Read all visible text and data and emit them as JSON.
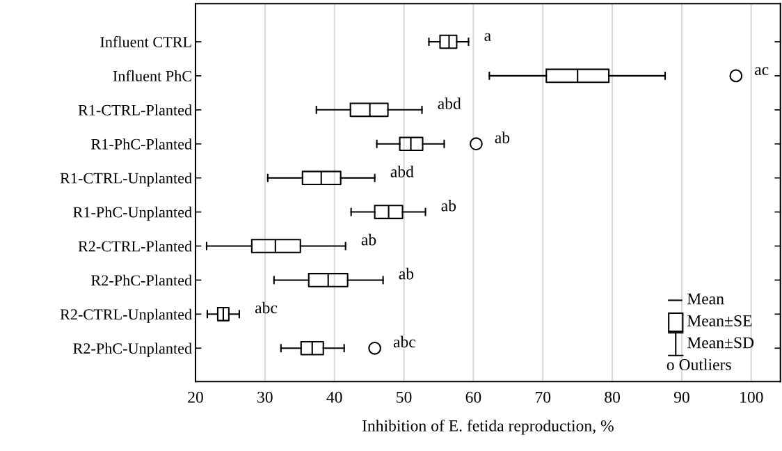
{
  "chart_data": {
    "type": "box",
    "xlabel": "Inhibition of E. fetida reproduction, %",
    "orientation": "horizontal",
    "categories": [
      "Influent CTRL",
      "Influent PhC",
      "R1-CTRL-Planted",
      "R1-PhC-Planted",
      "R1-CTRL-Unplanted",
      "R1-PhC-Unplanted",
      "R2-CTRL-Planted",
      "R2-PhC-Planted",
      "R2-CTRL-Unplanted",
      "R2-PhC-Unplanted"
    ],
    "boxes": [
      {
        "low": 53.6,
        "q1": 55.2,
        "median": 56.5,
        "q3": 57.6,
        "high": 59.3
      },
      {
        "low": 62.3,
        "q1": 70.5,
        "median": 75.0,
        "q3": 79.5,
        "high": 87.6,
        "outliers": [
          97.8
        ]
      },
      {
        "low": 37.4,
        "q1": 42.3,
        "median": 45.1,
        "q3": 47.7,
        "high": 52.6
      },
      {
        "low": 46.1,
        "q1": 49.4,
        "median": 51.0,
        "q3": 52.7,
        "high": 55.8,
        "outliers": [
          60.4
        ]
      },
      {
        "low": 30.4,
        "q1": 35.4,
        "median": 38.1,
        "q3": 40.9,
        "high": 45.8
      },
      {
        "low": 42.4,
        "q1": 45.8,
        "median": 47.8,
        "q3": 49.8,
        "high": 53.1
      },
      {
        "low": 21.6,
        "q1": 28.1,
        "median": 31.5,
        "q3": 35.1,
        "high": 41.6
      },
      {
        "low": 31.3,
        "q1": 36.3,
        "median": 39.1,
        "q3": 41.9,
        "high": 47.0
      },
      {
        "low": 21.7,
        "q1": 23.2,
        "median": 24.0,
        "q3": 24.8,
        "high": 26.3
      },
      {
        "low": 32.3,
        "q1": 35.2,
        "median": 36.8,
        "q3": 38.4,
        "high": 41.4,
        "outliers": [
          45.8
        ]
      }
    ],
    "xlim": [
      20,
      104.2
    ],
    "xticks": [
      20,
      30,
      40,
      50,
      60,
      70,
      80,
      90,
      100
    ],
    "grid": "x",
    "annotations": [
      "a",
      "ac",
      "abd",
      "ab",
      "abd",
      "ab",
      "ab",
      "ab",
      "abc",
      "abc",
      "Mean",
      "Mean±SE",
      "Mean±SD",
      "o Outliers"
    ]
  }
}
